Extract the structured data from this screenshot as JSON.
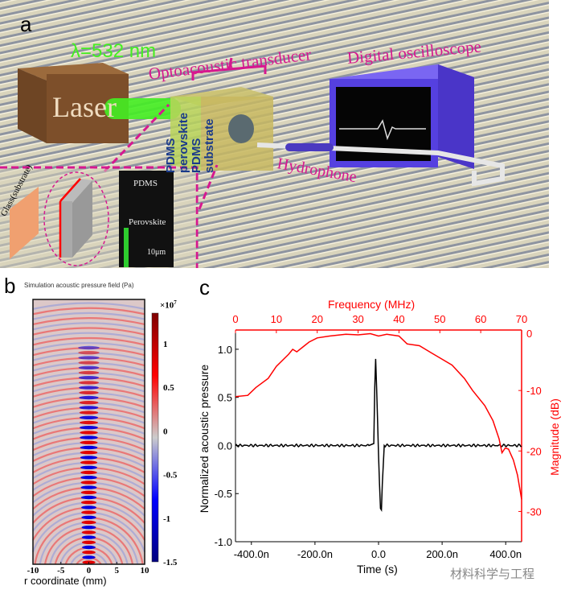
{
  "panel_a": {
    "label": "a",
    "laser": "Laser",
    "wavelength": "λ=532 nm",
    "transducer_title": "Optoacoustic transducer",
    "layers": [
      "PDMS",
      "perovskite",
      "PDMS",
      "substrate"
    ],
    "oscilloscope": "Digital oscilloscope",
    "hydrophone": "Hydrophone",
    "inset_glass": "Glass(substrate)",
    "inset_pdms": "PDMS",
    "inset_perovskite": "Perovskite",
    "scale_bar": "10μm",
    "colors": {
      "title_text": "#d6188f",
      "layer_text": "#1a3a8a",
      "beam": "#44ee22",
      "oscilloscope": "#5540e0"
    }
  },
  "chart_data": [
    {
      "panel_label": "b",
      "type": "heatmap",
      "title": "Simulation acoustic pressure field (Pa)",
      "xlabel": "r coordinate (mm)",
      "xlim": [
        -10,
        10
      ],
      "xticks": [
        "-10",
        "-5",
        "0",
        "5",
        "10"
      ],
      "colorbar": {
        "multiplier": "×10",
        "exponent": "7",
        "ticks": [
          "1",
          "0.5",
          "0",
          "-0.5",
          "-1",
          "-1.5"
        ],
        "range": [
          -1.5,
          1.35
        ],
        "colors": [
          "#00007f",
          "#0000ff",
          "#cccccc",
          "#ff0000",
          "#7f0000"
        ]
      }
    },
    {
      "panel_label": "c",
      "type": "line",
      "xlabel": "Time (s)",
      "ylabel": "Normalized acoustic pressure",
      "xlim": [
        -450,
        450
      ],
      "xticks": [
        "-400.0n",
        "-200.0n",
        "0.0",
        "200.0n",
        "400.0n"
      ],
      "ylim": [
        -1.0,
        1.2
      ],
      "yticks": [
        "-1.0",
        "-0.5",
        "0.0",
        "0.5",
        "1.0"
      ],
      "x2label": "Frequency (MHz)",
      "x2lim": [
        0,
        70
      ],
      "x2ticks": [
        "0",
        "10",
        "20",
        "30",
        "40",
        "50",
        "60",
        "70"
      ],
      "y2label": "Magnitude (dB)",
      "y2lim": [
        -35,
        0
      ],
      "y2ticks": [
        "0",
        "-10",
        "-20",
        "-30"
      ],
      "series": [
        {
          "color": "#000000",
          "axis": "time",
          "x": [
            -450,
            -30,
            -15,
            -10,
            -5,
            0,
            5,
            8,
            12,
            18,
            450
          ],
          "y": [
            0,
            0,
            0.02,
            1.0,
            0.5,
            -0.1,
            -0.6,
            -0.76,
            -0.4,
            0,
            0
          ]
        },
        {
          "color": "#ff0000",
          "axis": "frequency",
          "x": [
            0,
            3,
            5,
            8,
            10,
            13,
            14,
            15,
            18,
            20,
            23,
            27,
            30,
            33,
            35,
            37,
            40,
            42,
            45,
            48,
            50,
            53,
            56,
            58,
            61,
            63,
            64.5,
            65.2,
            66,
            66.8,
            68,
            69,
            70
          ],
          "y": [
            -11,
            -10.8,
            -9.5,
            -8,
            -6,
            -4,
            -3.2,
            -3.6,
            -2,
            -1.3,
            -1,
            -0.7,
            -0.8,
            -0.6,
            -1,
            -0.7,
            -1,
            -2.3,
            -2.6,
            -3.8,
            -4.6,
            -5.8,
            -8,
            -10,
            -12.5,
            -15,
            -18,
            -20.3,
            -19.5,
            -19.7,
            -21.5,
            -24,
            -28
          ]
        }
      ]
    }
  ],
  "watermark": "材料科学与工程"
}
